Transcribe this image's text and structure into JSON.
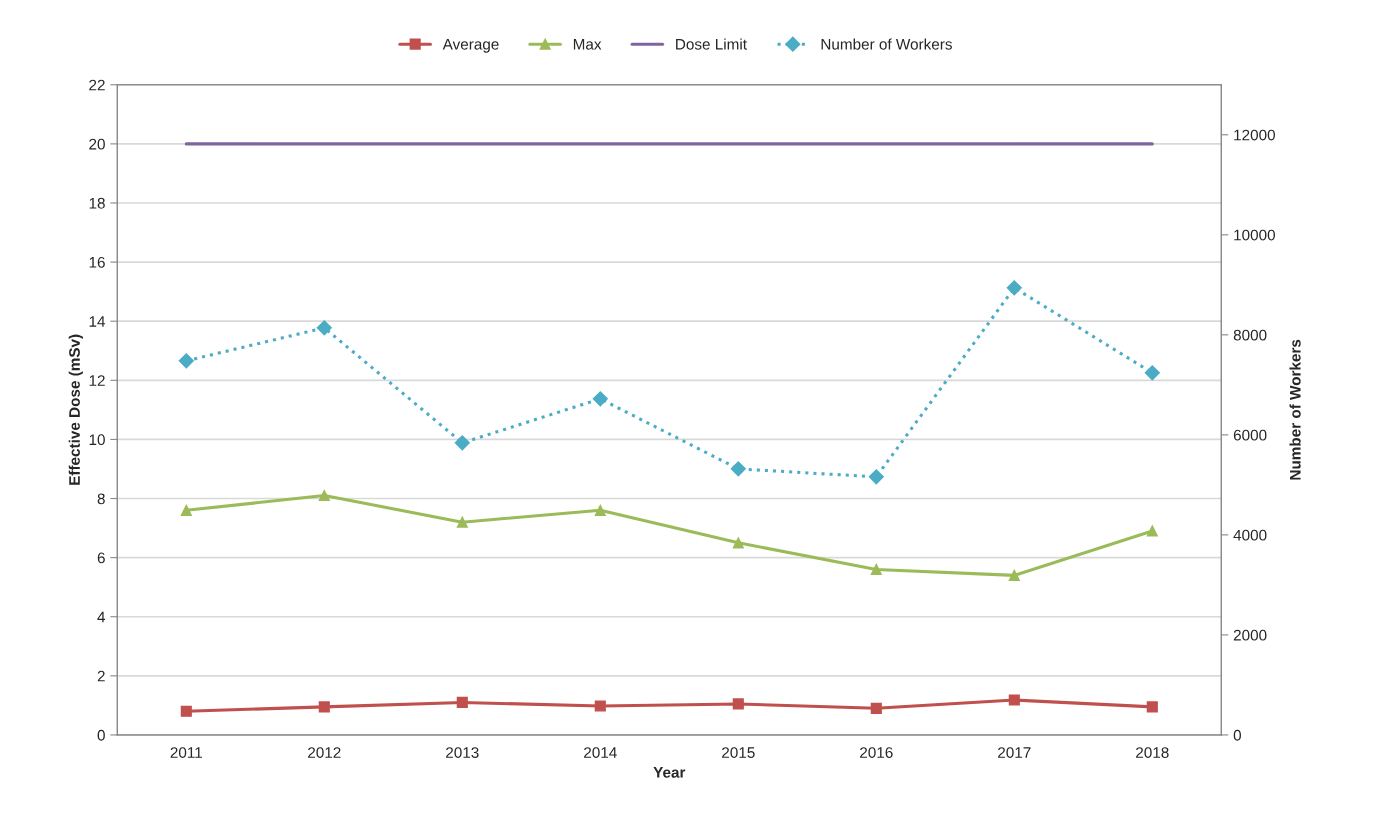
{
  "chart_data": {
    "type": "line",
    "xlabel": "Year",
    "ylabel": "Effective Dose (mSv)",
    "y2label": "Number of Workers",
    "categories": [
      "2011",
      "2012",
      "2013",
      "2014",
      "2015",
      "2016",
      "2017",
      "2018"
    ],
    "series": [
      {
        "name": "Average",
        "color": "#c0504d",
        "marker": "square",
        "line_style": "solid",
        "values": [
          0.8,
          0.95,
          1.1,
          0.98,
          1.05,
          0.9,
          1.18,
          0.95
        ]
      },
      {
        "name": "Max",
        "color": "#9bbb59",
        "marker": "triangle",
        "line_style": "solid",
        "values": [
          7.6,
          8.1,
          7.2,
          7.6,
          6.5,
          5.6,
          5.4,
          6.9
        ]
      },
      {
        "name": "Dose Limit",
        "color": "#8064a2",
        "marker": "none",
        "line_style": "solid",
        "values": [
          20,
          20,
          20,
          20,
          20,
          20,
          20,
          20
        ]
      },
      {
        "name": "Number of Workers",
        "color": "#4bacc6",
        "marker": "diamond",
        "line_style": "dotted",
        "axis": "y2",
        "values": [
          7480,
          8140,
          5840,
          6720,
          5320,
          5160,
          8940,
          7240
        ]
      }
    ],
    "ylim": [
      0,
      22
    ],
    "yticks": [
      0,
      2,
      4,
      6,
      8,
      10,
      12,
      14,
      16,
      18,
      20,
      22
    ],
    "y2lim": [
      0,
      13000
    ],
    "y2ticks": [
      0,
      2000,
      4000,
      6000,
      8000,
      10000,
      12000
    ],
    "grid": "y",
    "legend": "top"
  }
}
